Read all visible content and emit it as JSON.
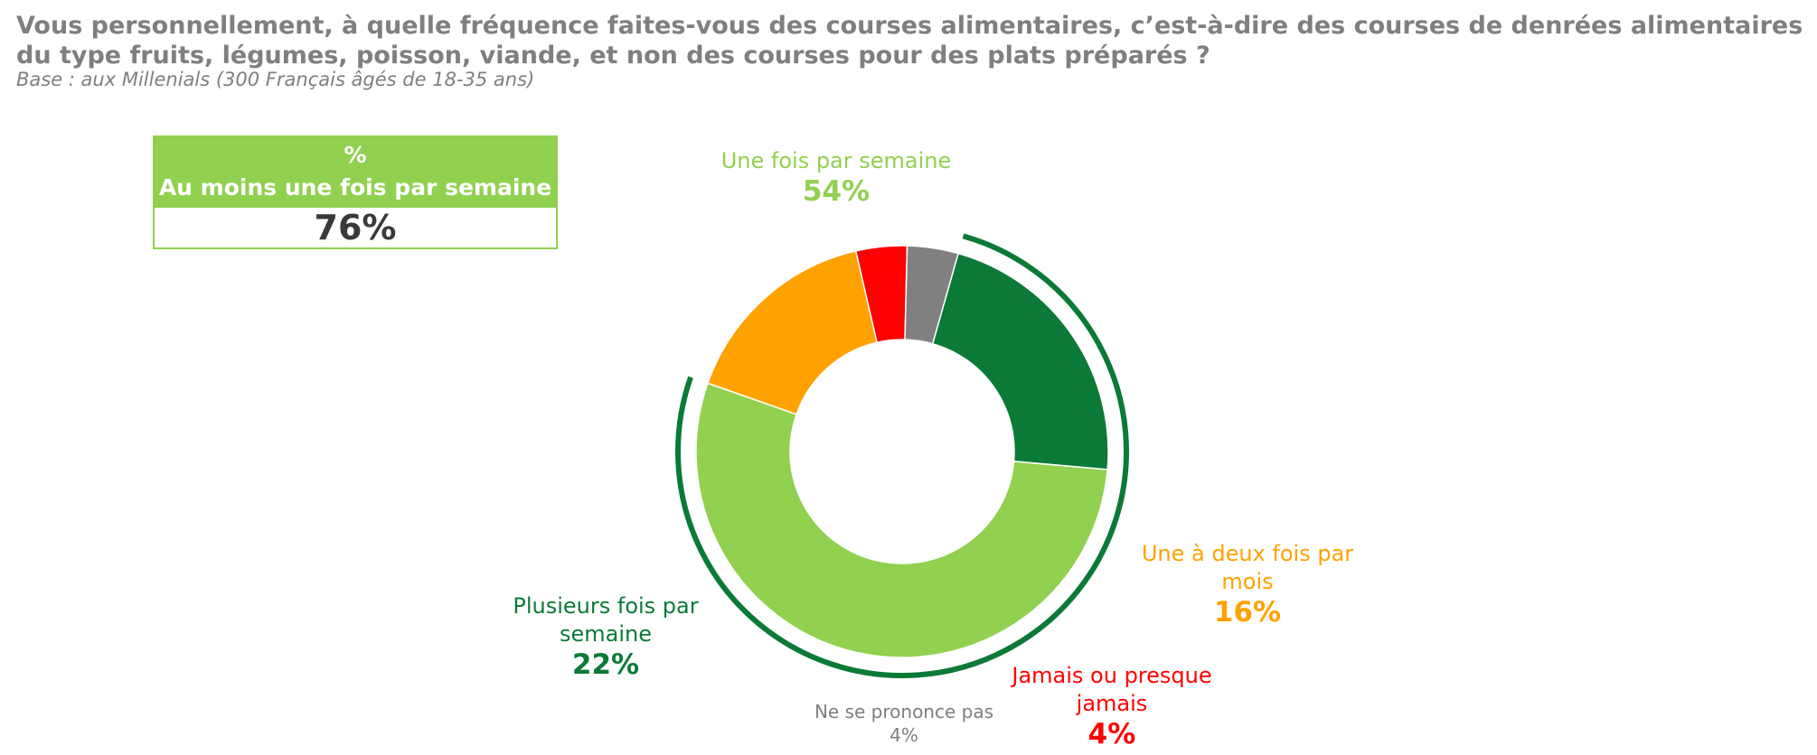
{
  "header": {
    "title": "Vous personnellement, à quelle fréquence faites-vous des courses alimentaires, c’est-à-dire des courses de denrées alimentaires du type fruits, légumes, poisson, viande, et non des courses pour des plats préparés ?",
    "subtitle": "Base : aux Millenials (300 Français âgés de 18-35 ans)"
  },
  "summary_box": {
    "symbol": "%",
    "label": "Au moins une fois par semaine",
    "value": "76%"
  },
  "colors": {
    "light_green": "#92d050",
    "dark_green": "#0b7a37",
    "orange": "#ffa200",
    "red": "#ff0000",
    "gray": "#7f7f7f"
  },
  "chart_data": {
    "type": "pie",
    "variant": "donut",
    "unit": "%",
    "slices": [
      {
        "label": "Une fois par semaine",
        "value": 54,
        "display": "54%",
        "color": "#92d050"
      },
      {
        "label": "Une à deux fois par mois",
        "value": 16,
        "display": "16%",
        "color": "#ffa200"
      },
      {
        "label": "Jamais ou presque jamais",
        "value": 4,
        "display": "4%",
        "color": "#ff0000"
      },
      {
        "label": "Ne se prononce pas",
        "value": 4,
        "display": "4%",
        "color": "#808080"
      },
      {
        "label": "Plusieurs fois par semaine",
        "value": 22,
        "display": "22%",
        "color": "#0b7a37"
      }
    ],
    "bracket": {
      "label": "Au moins une fois par semaine",
      "covers": [
        "Une fois par semaine",
        "Plusieurs fois par semaine"
      ],
      "color": "#0b7a37"
    }
  }
}
